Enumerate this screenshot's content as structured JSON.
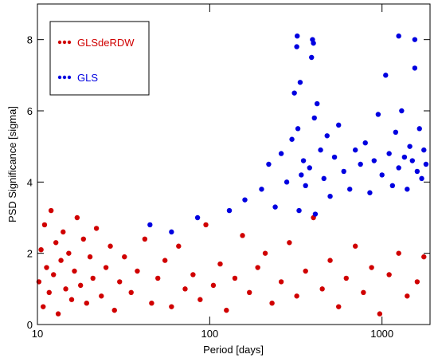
{
  "chart_data": {
    "type": "scatter",
    "x_label": "Period [days]",
    "y_label": "PSD Significance [sigma]",
    "xscale": "log",
    "xlim": [
      10,
      1900
    ],
    "ylim": [
      0,
      9
    ],
    "xticks": [
      10,
      100,
      1000
    ],
    "yticks": [
      0,
      2,
      4,
      6,
      8
    ],
    "legend": "upper left",
    "series": [
      {
        "name": "GLSdeRDW",
        "color": "#d00000",
        "x": [
          10.2,
          10.5,
          10.8,
          11,
          11.3,
          11.7,
          12,
          12.4,
          12.8,
          13.2,
          13.7,
          14.1,
          14.6,
          15.2,
          15.8,
          16.4,
          17,
          17.8,
          18.5,
          19.3,
          20.2,
          21,
          22,
          23.5,
          25,
          26.5,
          28,
          30,
          32,
          35,
          38,
          42,
          46,
          50,
          55,
          60,
          66,
          72,
          80,
          88,
          95,
          105,
          115,
          125,
          140,
          155,
          170,
          190,
          210,
          230,
          260,
          290,
          320,
          360,
          400,
          450,
          500,
          560,
          620,
          700,
          780,
          870,
          970,
          1100,
          1250,
          1400,
          1600,
          1750
        ],
        "values": [
          1.2,
          2.1,
          0.5,
          2.8,
          1.6,
          0.9,
          3.2,
          1.4,
          2.3,
          0.3,
          1.8,
          2.6,
          1.0,
          2.0,
          0.7,
          1.5,
          3.0,
          1.1,
          2.4,
          0.6,
          1.9,
          1.3,
          2.7,
          0.8,
          1.6,
          2.2,
          0.4,
          1.2,
          1.9,
          0.9,
          1.5,
          2.4,
          0.6,
          1.3,
          1.8,
          0.5,
          2.2,
          1.0,
          1.4,
          0.7,
          2.8,
          1.1,
          1.7,
          0.4,
          1.3,
          2.5,
          0.9,
          1.6,
          2.0,
          0.6,
          1.2,
          2.3,
          0.8,
          1.5,
          3.0,
          1.0,
          1.8,
          0.5,
          1.3,
          2.2,
          0.9,
          1.6,
          0.3,
          1.4,
          2.0,
          0.8,
          1.2,
          1.9
        ]
      },
      {
        "name": "GLS",
        "color": "#0000e0",
        "x": [
          45,
          60,
          85,
          130,
          160,
          200,
          220,
          240,
          260,
          280,
          300,
          310,
          320,
          322,
          325,
          330,
          335,
          340,
          350,
          360,
          380,
          390,
          395,
          400,
          405,
          410,
          420,
          440,
          460,
          480,
          500,
          530,
          560,
          600,
          650,
          700,
          750,
          800,
          850,
          900,
          950,
          1000,
          1050,
          1100,
          1150,
          1200,
          1250,
          1300,
          1350,
          1400,
          1450,
          1500,
          1550,
          1600,
          1650,
          1700,
          1750,
          1800,
          1250,
          1550
        ],
        "values": [
          2.8,
          2.6,
          3.0,
          3.2,
          3.5,
          3.8,
          4.5,
          3.3,
          4.8,
          4.0,
          5.2,
          6.5,
          7.8,
          8.1,
          5.5,
          3.2,
          6.8,
          4.2,
          4.6,
          3.9,
          4.4,
          7.5,
          8.0,
          7.9,
          5.8,
          3.1,
          6.2,
          4.9,
          4.1,
          5.3,
          3.6,
          4.7,
          5.6,
          4.3,
          3.8,
          4.9,
          4.5,
          5.1,
          3.7,
          4.6,
          5.9,
          4.2,
          7.0,
          4.8,
          3.9,
          5.4,
          4.4,
          6.0,
          4.7,
          3.8,
          5.0,
          4.6,
          7.2,
          4.3,
          5.5,
          4.1,
          4.9,
          4.5,
          8.1,
          8.0
        ]
      }
    ]
  }
}
